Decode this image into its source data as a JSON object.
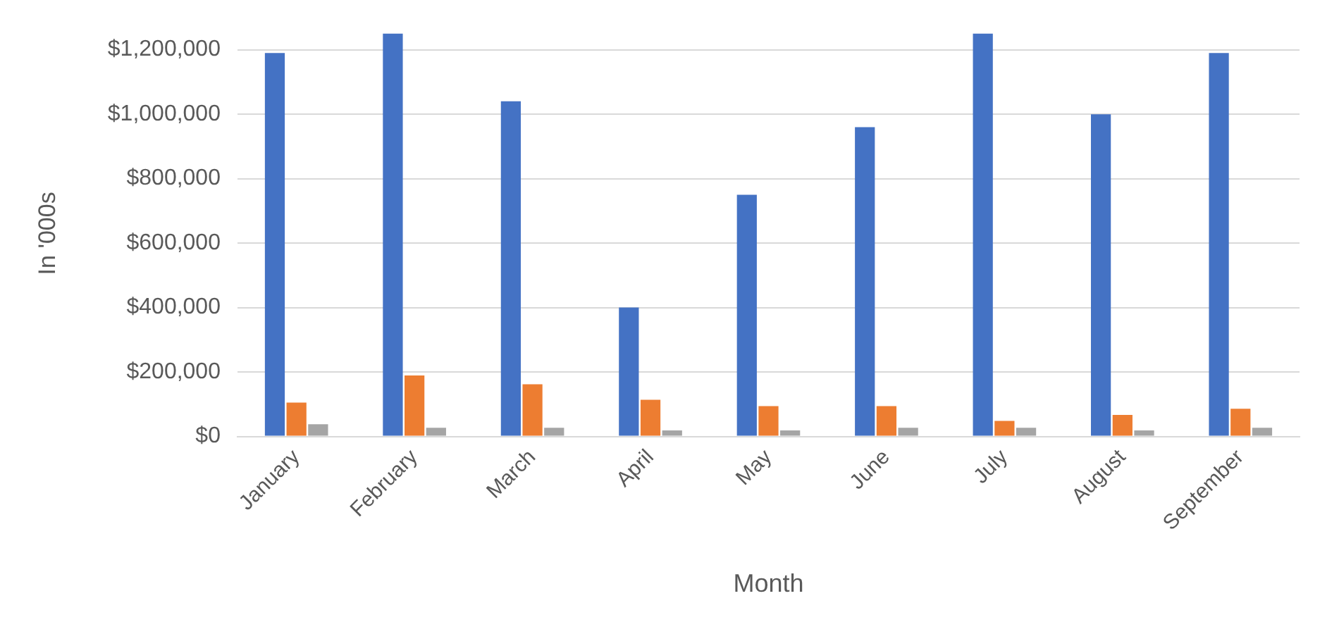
{
  "chart_data": {
    "type": "bar",
    "xlabel": "Month",
    "ylabel": "In '000s",
    "categories": [
      "January",
      "February",
      "March",
      "April",
      "May",
      "June",
      "July",
      "August",
      "September"
    ],
    "series": [
      {
        "color": "#4472c4",
        "values": [
          1190000,
          1250000,
          1040000,
          400000,
          750000,
          960000,
          1250000,
          1000000,
          1190000
        ]
      },
      {
        "color": "#ed7d31",
        "values": [
          105000,
          189000,
          162000,
          114000,
          94000,
          94000,
          48000,
          67000,
          86000
        ]
      },
      {
        "color": "#a5a5a5",
        "values": [
          38000,
          27000,
          27000,
          19000,
          19000,
          27000,
          27000,
          19000,
          27000
        ]
      }
    ],
    "ylim": [
      0,
      1260000
    ],
    "yticks": [
      {
        "value": 0,
        "label": "$0"
      },
      {
        "value": 200000,
        "label": "$200,000"
      },
      {
        "value": 400000,
        "label": "$400,000"
      },
      {
        "value": 600000,
        "label": "$600,000"
      },
      {
        "value": 800000,
        "label": "$800,000"
      },
      {
        "value": 1000000,
        "label": "$1,000,000"
      },
      {
        "value": 1200000,
        "label": "$1,200,000"
      }
    ],
    "grid": "y",
    "legend": false
  }
}
